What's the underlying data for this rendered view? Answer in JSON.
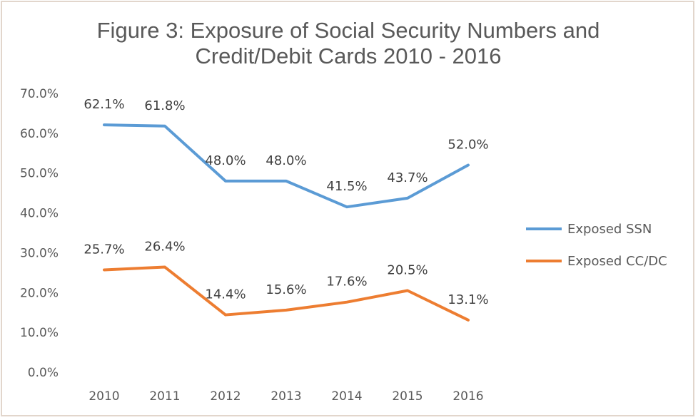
{
  "chart_data": {
    "type": "line",
    "title_lines": [
      "Figure 3:  Exposure of Social Security Numbers and",
      "Credit/Debit Cards 2010 - 2016"
    ],
    "categories": [
      "2010",
      "2011",
      "2012",
      "2013",
      "2014",
      "2015",
      "2016"
    ],
    "y_ticks": [
      "0.0%",
      "10.0%",
      "20.0%",
      "30.0%",
      "40.0%",
      "50.0%",
      "60.0%",
      "70.0%"
    ],
    "ylim": [
      0,
      70
    ],
    "grid": false,
    "legend_position": "right",
    "series": [
      {
        "name": "Exposed SSN",
        "color": "#5b9bd5",
        "values": [
          62.1,
          61.8,
          48.0,
          48.0,
          41.5,
          43.7,
          52.0
        ],
        "labels": [
          "62.1%",
          "61.8%",
          "48.0%",
          "48.0%",
          "41.5%",
          "43.7%",
          "52.0%"
        ]
      },
      {
        "name": "Exposed CC/DC",
        "color": "#ed7d31",
        "values": [
          25.7,
          26.4,
          14.4,
          15.6,
          17.6,
          20.5,
          13.1
        ],
        "labels": [
          "25.7%",
          "26.4%",
          "14.4%",
          "15.6%",
          "17.6%",
          "20.5%",
          "13.1%"
        ]
      }
    ]
  }
}
